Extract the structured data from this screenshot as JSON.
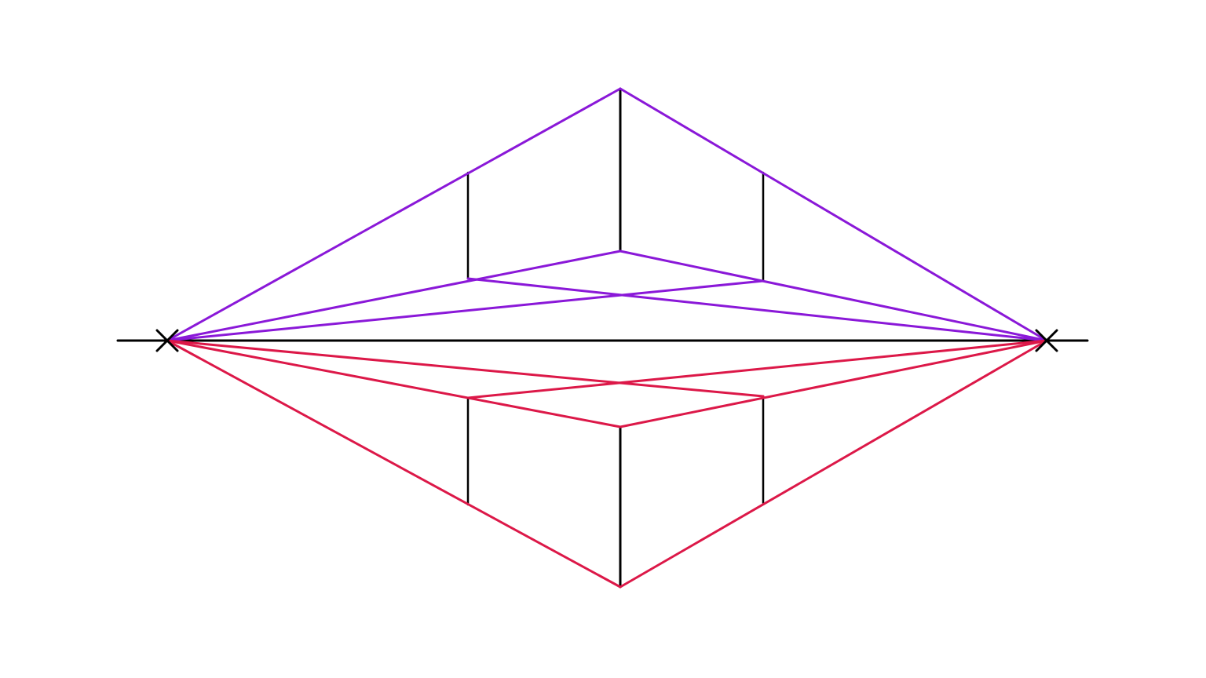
{
  "diagram": {
    "type": "two-point perspective construction",
    "colors": {
      "horizon": "#000000",
      "verticals": "#000000",
      "upper_box_lines": "#8a18d8",
      "lower_box_lines": "#dc1848",
      "vanishing_point_marks": "#000000"
    },
    "icons": [
      "vanishing-point-left-x-mark",
      "vanishing-point-right-x-mark"
    ]
  }
}
